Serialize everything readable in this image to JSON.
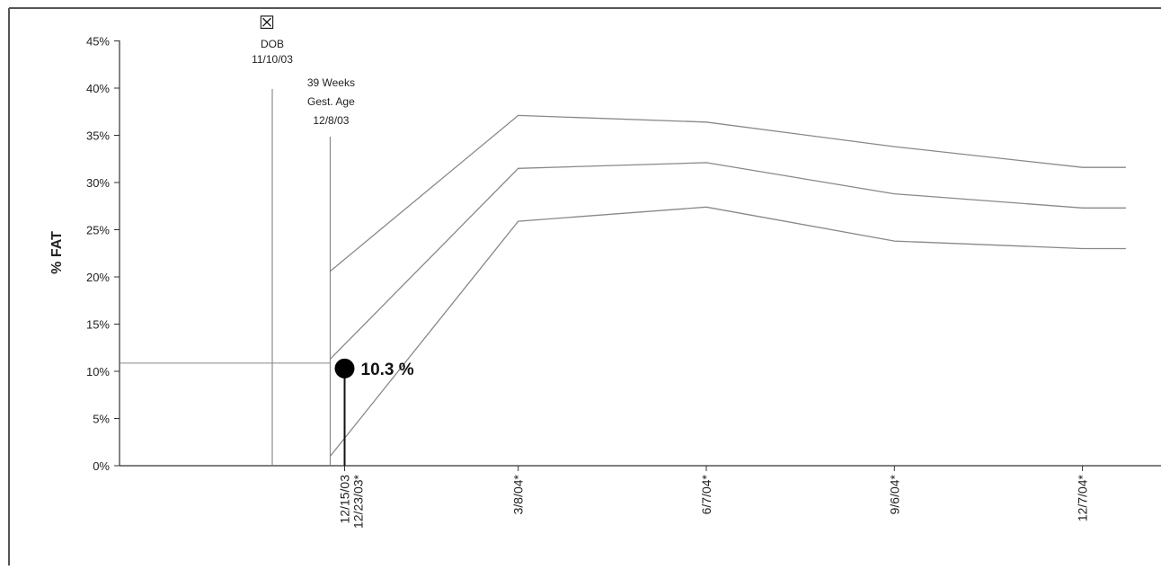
{
  "chart_data": {
    "type": "line",
    "ylabel": "% FAT",
    "yticks": [
      "0%",
      "5%",
      "10%",
      "15%",
      "20%",
      "25%",
      "30%",
      "35%",
      "40%",
      "45%"
    ],
    "ylim": [
      0,
      45
    ],
    "x_ticks": [
      {
        "label": "12/15/03",
        "label2": "12/23/03*",
        "day": 35
      },
      {
        "label": "3/8/04*",
        "day": 119
      },
      {
        "label": "6/7/04*",
        "day": 210
      },
      {
        "label": "9/6/04*",
        "day": 301
      },
      {
        "label": "12/7/04*",
        "day": 392
      }
    ],
    "dob_marker": {
      "symbol": "☒",
      "lines": [
        "DOB",
        "11/10/03"
      ],
      "day": 0
    },
    "gest_marker": {
      "lines": [
        "39 Weeks",
        "Gest. Age",
        "12/8/03"
      ],
      "day": 28
    },
    "series": [
      {
        "values": [
          [
            28,
            20.6
          ],
          [
            119,
            37.1
          ],
          [
            210,
            36.4
          ],
          [
            301,
            33.8
          ],
          [
            392,
            31.6
          ],
          [
            413,
            31.6
          ]
        ]
      },
      {
        "values": [
          [
            28,
            11.3
          ],
          [
            119,
            31.5
          ],
          [
            210,
            32.1
          ],
          [
            301,
            28.8
          ],
          [
            392,
            27.3
          ],
          [
            413,
            27.3
          ]
        ]
      },
      {
        "values": [
          [
            28,
            1.0
          ],
          [
            119,
            25.9
          ],
          [
            210,
            27.4
          ],
          [
            301,
            23.8
          ],
          [
            392,
            23.0
          ],
          [
            413,
            23.0
          ]
        ]
      }
    ],
    "measurement": {
      "day": 35,
      "value": 10.3,
      "label": "10.3 %"
    },
    "grid": false
  }
}
